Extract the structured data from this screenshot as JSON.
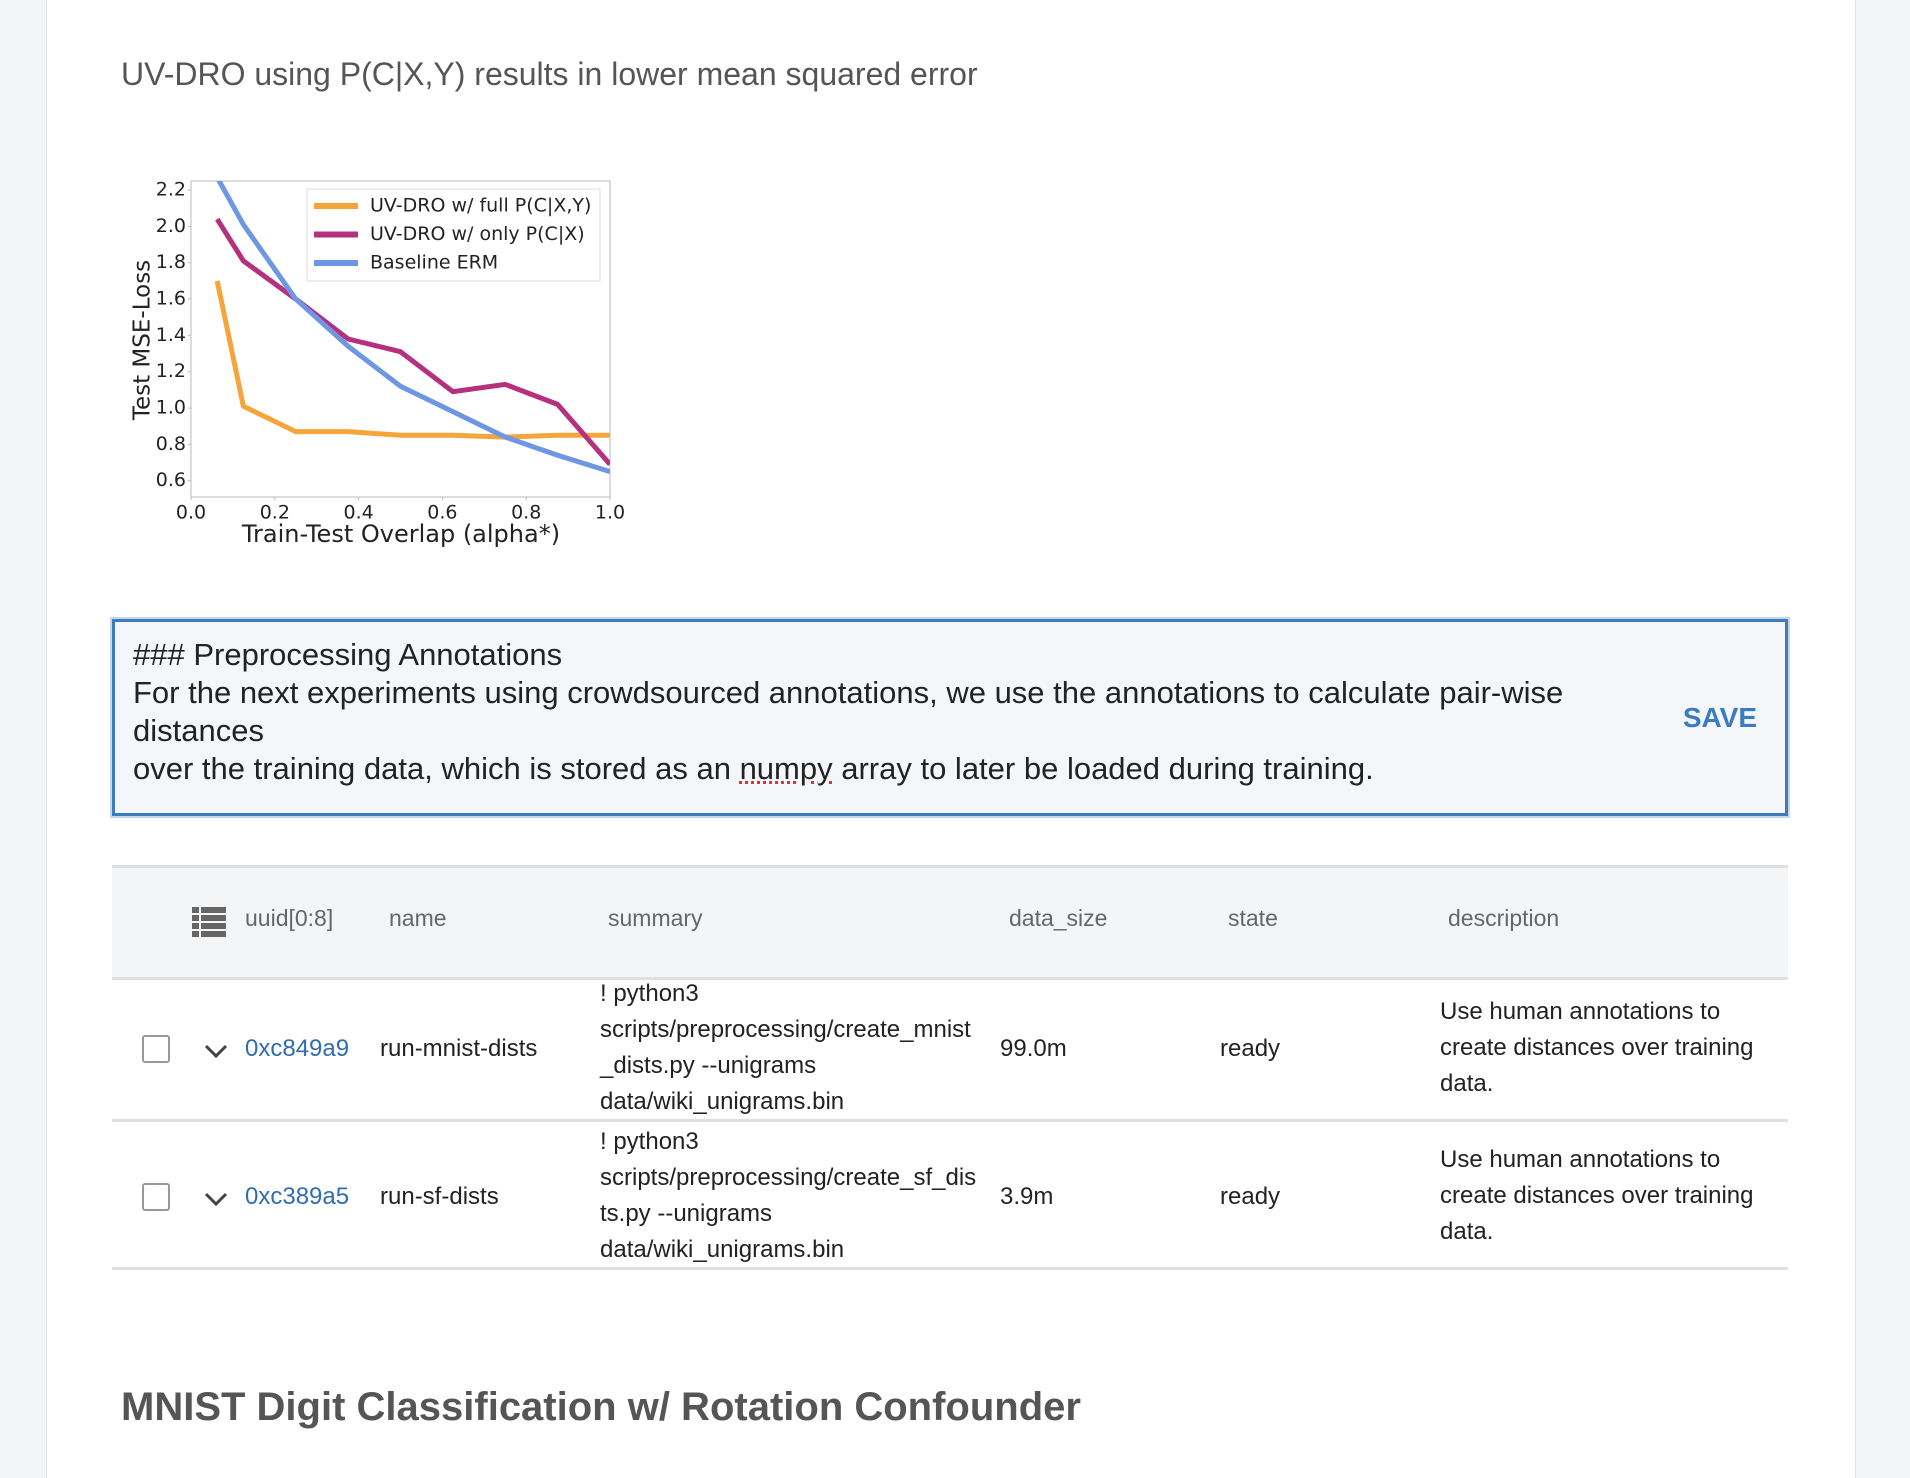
{
  "caption": "UV-DRO using P(C|X,Y) results in lower mean squared error",
  "chart_data": {
    "type": "line",
    "x_label": "Train-Test Overlap (alpha*)",
    "y_label": "Test MSE-Loss",
    "x": [
      0.0625,
      0.125,
      0.25,
      0.375,
      0.5,
      0.625,
      0.75,
      0.875,
      1.0
    ],
    "series": [
      {
        "name": "UV-DRO w/ full P(C|X,Y)",
        "color": "#f5a53a",
        "values": [
          1.7,
          1.01,
          0.87,
          0.87,
          0.85,
          0.85,
          0.84,
          0.85,
          0.85
        ]
      },
      {
        "name": "UV-DRO w/ only P(C|X)",
        "color": "#b5307f",
        "values": [
          2.04,
          1.81,
          1.6,
          1.38,
          1.31,
          1.09,
          1.13,
          1.02,
          0.69
        ]
      },
      {
        "name": "Baseline ERM",
        "color": "#6d97e3",
        "values": [
          2.27,
          2.01,
          1.6,
          1.34,
          1.12,
          0.98,
          0.84,
          0.74,
          0.65
        ]
      }
    ],
    "xlim": [
      0,
      1
    ],
    "ylim": [
      0.51,
      2.25
    ],
    "xticks": [
      {
        "value": 0,
        "label": "0.0"
      },
      0.2,
      0.4,
      0.6,
      0.8,
      {
        "value": 1,
        "label": "1.0"
      }
    ],
    "yticks": [
      0.6,
      0.8,
      {
        "value": 1,
        "label": "1.0"
      },
      1.2,
      1.4,
      1.6,
      1.8,
      {
        "value": 2,
        "label": "2.0"
      },
      2.2
    ],
    "legend": "upper right"
  },
  "markdown": {
    "lines": [
      "### Preprocessing Annotations",
      "For the next experiments using crowdsourced annotations, we use the annotations to calculate pair-wise distances",
      "over the training data, which is stored as an numpy array to later be loaded during training."
    ],
    "save": "SAVE"
  },
  "table": {
    "headers": [
      "uuid[0:8]",
      "name",
      "summary",
      "data_size",
      "state",
      "description"
    ],
    "rows": [
      [
        "0xc849a9",
        "run-mnist-dists",
        "! python3 scripts/preprocessing/create_mnist_dists.py --unigrams data/wiki_unigrams.bin",
        "99.0m",
        "ready",
        "Use human annotations to create distances over training data."
      ],
      [
        "0xc389a5",
        "run-sf-dists",
        "! python3 scripts/preprocessing/create_sf_dists.py --unigrams data/wiki_unigrams.bin",
        "3.9m",
        "ready",
        "Use human annotations to create distances over training data."
      ]
    ]
  },
  "heading": "MNIST Digit Classification w/ Rotation Confounder"
}
